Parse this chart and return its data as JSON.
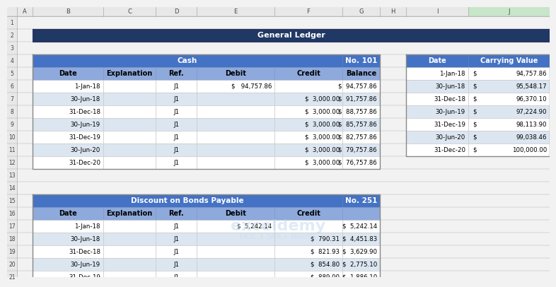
{
  "title": "General Ledger",
  "title_bg": "#1F3864",
  "title_fg": "#FFFFFF",
  "excel_bg": "#F2F2F2",
  "col_header_bg": "#E8E8E8",
  "row_header_bg": "#E8E8E8",
  "col_header_sel": "#C6EFCE",
  "cash_header_bg": "#4472C4",
  "cash_header_fg": "#FFFFFF",
  "cash_subheader_bg": "#8EA9DB",
  "cash_subheader_fg": "#000000",
  "row_bg1": "#FFFFFF",
  "row_bg2": "#DCE6F1",
  "cash_title": "Cash",
  "cash_no": "No. 101",
  "cash_cols": [
    "Date",
    "Explanation",
    "Ref.",
    "Debit",
    "Credit",
    "Balance"
  ],
  "cash_rows": [
    [
      "1-Jan-18",
      "",
      "J1",
      "$   94,757.86",
      "",
      "$  94,757.86"
    ],
    [
      "30-Jun-18",
      "",
      "J1",
      "",
      "$  3,000.00",
      "$  91,757.86"
    ],
    [
      "31-Dec-18",
      "",
      "J1",
      "",
      "$  3,000.00",
      "$  88,757.86"
    ],
    [
      "30-Jun-19",
      "",
      "J1",
      "",
      "$  3,000.00",
      "$  85,757.86"
    ],
    [
      "31-Dec-19",
      "",
      "J1",
      "",
      "$  3,000.00",
      "$  82,757.86"
    ],
    [
      "30-Jun-20",
      "",
      "J1",
      "",
      "$  3,000.00",
      "$  79,757.86"
    ],
    [
      "31-Dec-20",
      "",
      "J1",
      "",
      "$  3,000.00",
      "$  76,757.86"
    ]
  ],
  "cv_header_bg": "#4472C4",
  "cv_header_fg": "#FFFFFF",
  "cv_cols": [
    "Date",
    "Carrying Value"
  ],
  "cv_rows": [
    [
      "1-Jan-18",
      "94,757.86"
    ],
    [
      "30-Jun-18",
      "95,548.17"
    ],
    [
      "31-Dec-18",
      "96,370.10"
    ],
    [
      "30-Jun-19",
      "97,224.90"
    ],
    [
      "31-Dec-19",
      "98,113.90"
    ],
    [
      "30-Jun-20",
      "99,038.46"
    ],
    [
      "31-Dec-20",
      "100,000.00"
    ]
  ],
  "dbp_title": "Discount on Bonds Payable",
  "dbp_no": "No. 251",
  "dbp_cols": [
    "Date",
    "Explanation",
    "Ref.",
    "Debit",
    "Credit",
    ""
  ],
  "dbp_rows": [
    [
      "1-Jan-18",
      "",
      "J1",
      "$  5,242.14",
      "",
      "$  5,242.14"
    ],
    [
      "30-Jun-18",
      "",
      "J1",
      "",
      "$  790.31",
      "$  4,451.83"
    ],
    [
      "31-Dec-18",
      "",
      "J1",
      "",
      "$  821.93",
      "$  3,629.90"
    ],
    [
      "30-Jun-19",
      "",
      "J1",
      "",
      "$  854.80",
      "$  2,775.10"
    ],
    [
      "31-Dec-19",
      "",
      "J1",
      "",
      "$  889.00",
      "$  1,886.10"
    ]
  ],
  "col_letters": [
    "A",
    "B",
    "C",
    "D",
    "E",
    "F",
    "G",
    "H",
    "I",
    "J"
  ],
  "col_lefts": [
    14,
    36,
    136,
    210,
    268,
    378,
    474,
    527,
    564,
    652
  ],
  "col_rights": [
    36,
    136,
    210,
    268,
    378,
    474,
    527,
    564,
    652,
    767
  ],
  "row_numbers": [
    1,
    2,
    3,
    4,
    5,
    6,
    7,
    8,
    9,
    10,
    11,
    12,
    13,
    14,
    15,
    16,
    17,
    18,
    19,
    20,
    21
  ],
  "row_tops": [
    13,
    31,
    49,
    67,
    85,
    103,
    121,
    139,
    157,
    175,
    193,
    211,
    229,
    247,
    265,
    283,
    301,
    319,
    337,
    355,
    373
  ]
}
